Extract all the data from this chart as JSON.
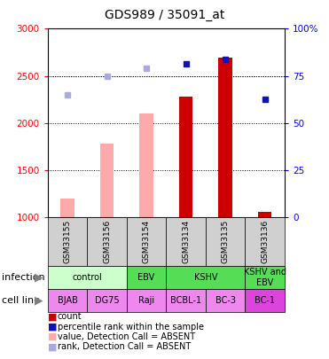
{
  "title": "GDS989 / 35091_at",
  "samples": [
    "GSM33155",
    "GSM33156",
    "GSM33154",
    "GSM33134",
    "GSM33135",
    "GSM33136"
  ],
  "bar_values": [
    1200,
    1780,
    2105,
    2280,
    2690,
    1055
  ],
  "bar_absent": [
    true,
    true,
    true,
    false,
    false,
    false
  ],
  "rank_values": [
    2300,
    2500,
    2580,
    2630,
    2670,
    2250
  ],
  "rank_absent": [
    true,
    true,
    true,
    false,
    false,
    false
  ],
  "ylim": [
    1000,
    3000
  ],
  "y2lim": [
    0,
    100
  ],
  "yticks": [
    1000,
    1500,
    2000,
    2500,
    3000
  ],
  "y2ticks": [
    0,
    25,
    50,
    75,
    100
  ],
  "y2labels": [
    "0",
    "25",
    "50",
    "75",
    "100%"
  ],
  "color_bar_present": "#cc0000",
  "color_bar_absent": "#ffaaaa",
  "color_rank_present": "#1111bb",
  "color_rank_absent": "#aaaadd",
  "infection_configs": [
    {
      "c0": 0,
      "c1": 2,
      "label": "control",
      "color": "#ccffcc"
    },
    {
      "c0": 2,
      "c1": 3,
      "label": "EBV",
      "color": "#55dd55"
    },
    {
      "c0": 3,
      "c1": 5,
      "label": "KSHV",
      "color": "#55dd55"
    },
    {
      "c0": 5,
      "c1": 6,
      "label": "KSHV and\nEBV",
      "color": "#55dd55"
    }
  ],
  "cell_configs": [
    {
      "c0": 0,
      "c1": 1,
      "label": "BJAB",
      "color": "#ee88ee"
    },
    {
      "c0": 1,
      "c1": 2,
      "label": "DG75",
      "color": "#ee88ee"
    },
    {
      "c0": 2,
      "c1": 3,
      "label": "Raji",
      "color": "#ee88ee"
    },
    {
      "c0": 3,
      "c1": 4,
      "label": "BCBL-1",
      "color": "#ee88ee"
    },
    {
      "c0": 4,
      "c1": 5,
      "label": "BC-3",
      "color": "#ee88ee"
    },
    {
      "c0": 5,
      "c1": 6,
      "label": "BC-1",
      "color": "#dd44dd"
    }
  ],
  "legend_items": [
    {
      "label": "count",
      "color": "#cc0000"
    },
    {
      "label": "percentile rank within the sample",
      "color": "#1111bb"
    },
    {
      "label": "value, Detection Call = ABSENT",
      "color": "#ffaaaa"
    },
    {
      "label": "rank, Detection Call = ABSENT",
      "color": "#aaaadd"
    }
  ],
  "bar_width": 0.35
}
